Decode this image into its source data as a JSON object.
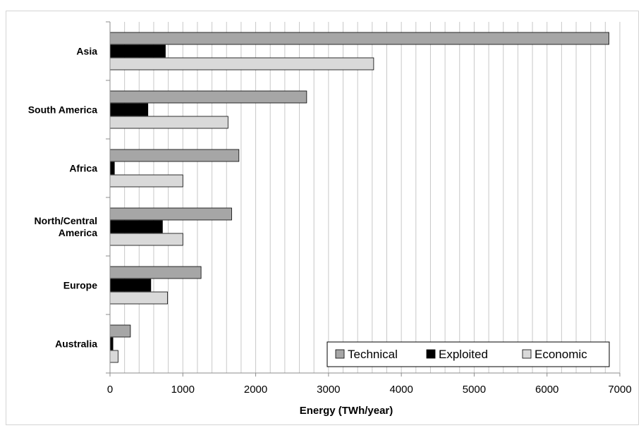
{
  "chart_data": {
    "type": "bar",
    "orientation": "horizontal",
    "categories": [
      "Asia",
      "South America",
      "Africa",
      "North/Central America",
      "Europe",
      "Australia"
    ],
    "category_label_lines": [
      [
        "Asia"
      ],
      [
        "South America"
      ],
      [
        "Africa"
      ],
      [
        "North/Central",
        "America"
      ],
      [
        "Europe"
      ],
      [
        "Australia"
      ]
    ],
    "series": [
      {
        "name": "Technical",
        "color": "#a6a6a6",
        "values": [
          6850,
          2700,
          1770,
          1670,
          1250,
          280
        ]
      },
      {
        "name": "Exploited",
        "color": "#000000",
        "values": [
          760,
          520,
          60,
          720,
          560,
          40
        ]
      },
      {
        "name": "Economic",
        "color": "#d9d9d9",
        "values": [
          3620,
          1620,
          1000,
          1000,
          790,
          110
        ]
      }
    ],
    "xlabel": "Energy (TWh/year)",
    "ylabel": "",
    "xlim": [
      0,
      7000
    ],
    "x_ticks": [
      0,
      1000,
      2000,
      3000,
      4000,
      5000,
      6000,
      7000
    ],
    "x_tick_labels": [
      "0",
      "1000",
      "2000",
      "3000",
      "4000",
      "5000",
      "6000",
      "7000"
    ],
    "minor_grid_step": 200,
    "grid": true,
    "legend_position": "bottom-right"
  }
}
